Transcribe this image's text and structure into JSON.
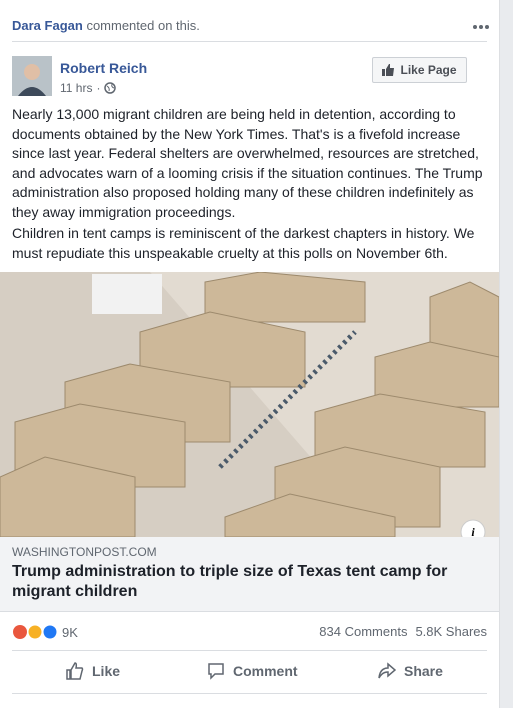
{
  "header": {
    "commenter": "Dara Fagan",
    "action": "commented on this."
  },
  "post": {
    "author": "Robert Reich",
    "time": "11 hrs",
    "like_page": "Like Page",
    "paragraphs": [
      "Nearly 13,000 migrant children are being held in detention, according to documents obtained by the New York Times. That's is a fivefold increase since last year. Federal shelters are overwhelmed, resources are stretched, and advocates warn of a looming crisis if the situation continues. The Trump administration also proposed holding many of these children indefinitely as they away immigration proceedings.",
      "Children in tent camps is reminiscent of the darkest chapters in history. We must repudiate this unspeakable cruelty at this polls on November 6th."
    ]
  },
  "link": {
    "source": "WASHINGTONPOST.COM",
    "headline": "Trump administration to triple size of Texas tent camp for migrant children"
  },
  "stats": {
    "reactions": "9K",
    "comments": "834 Comments",
    "shares": "5.8K Shares"
  },
  "actions": [
    "Like",
    "Comment",
    "Share"
  ]
}
